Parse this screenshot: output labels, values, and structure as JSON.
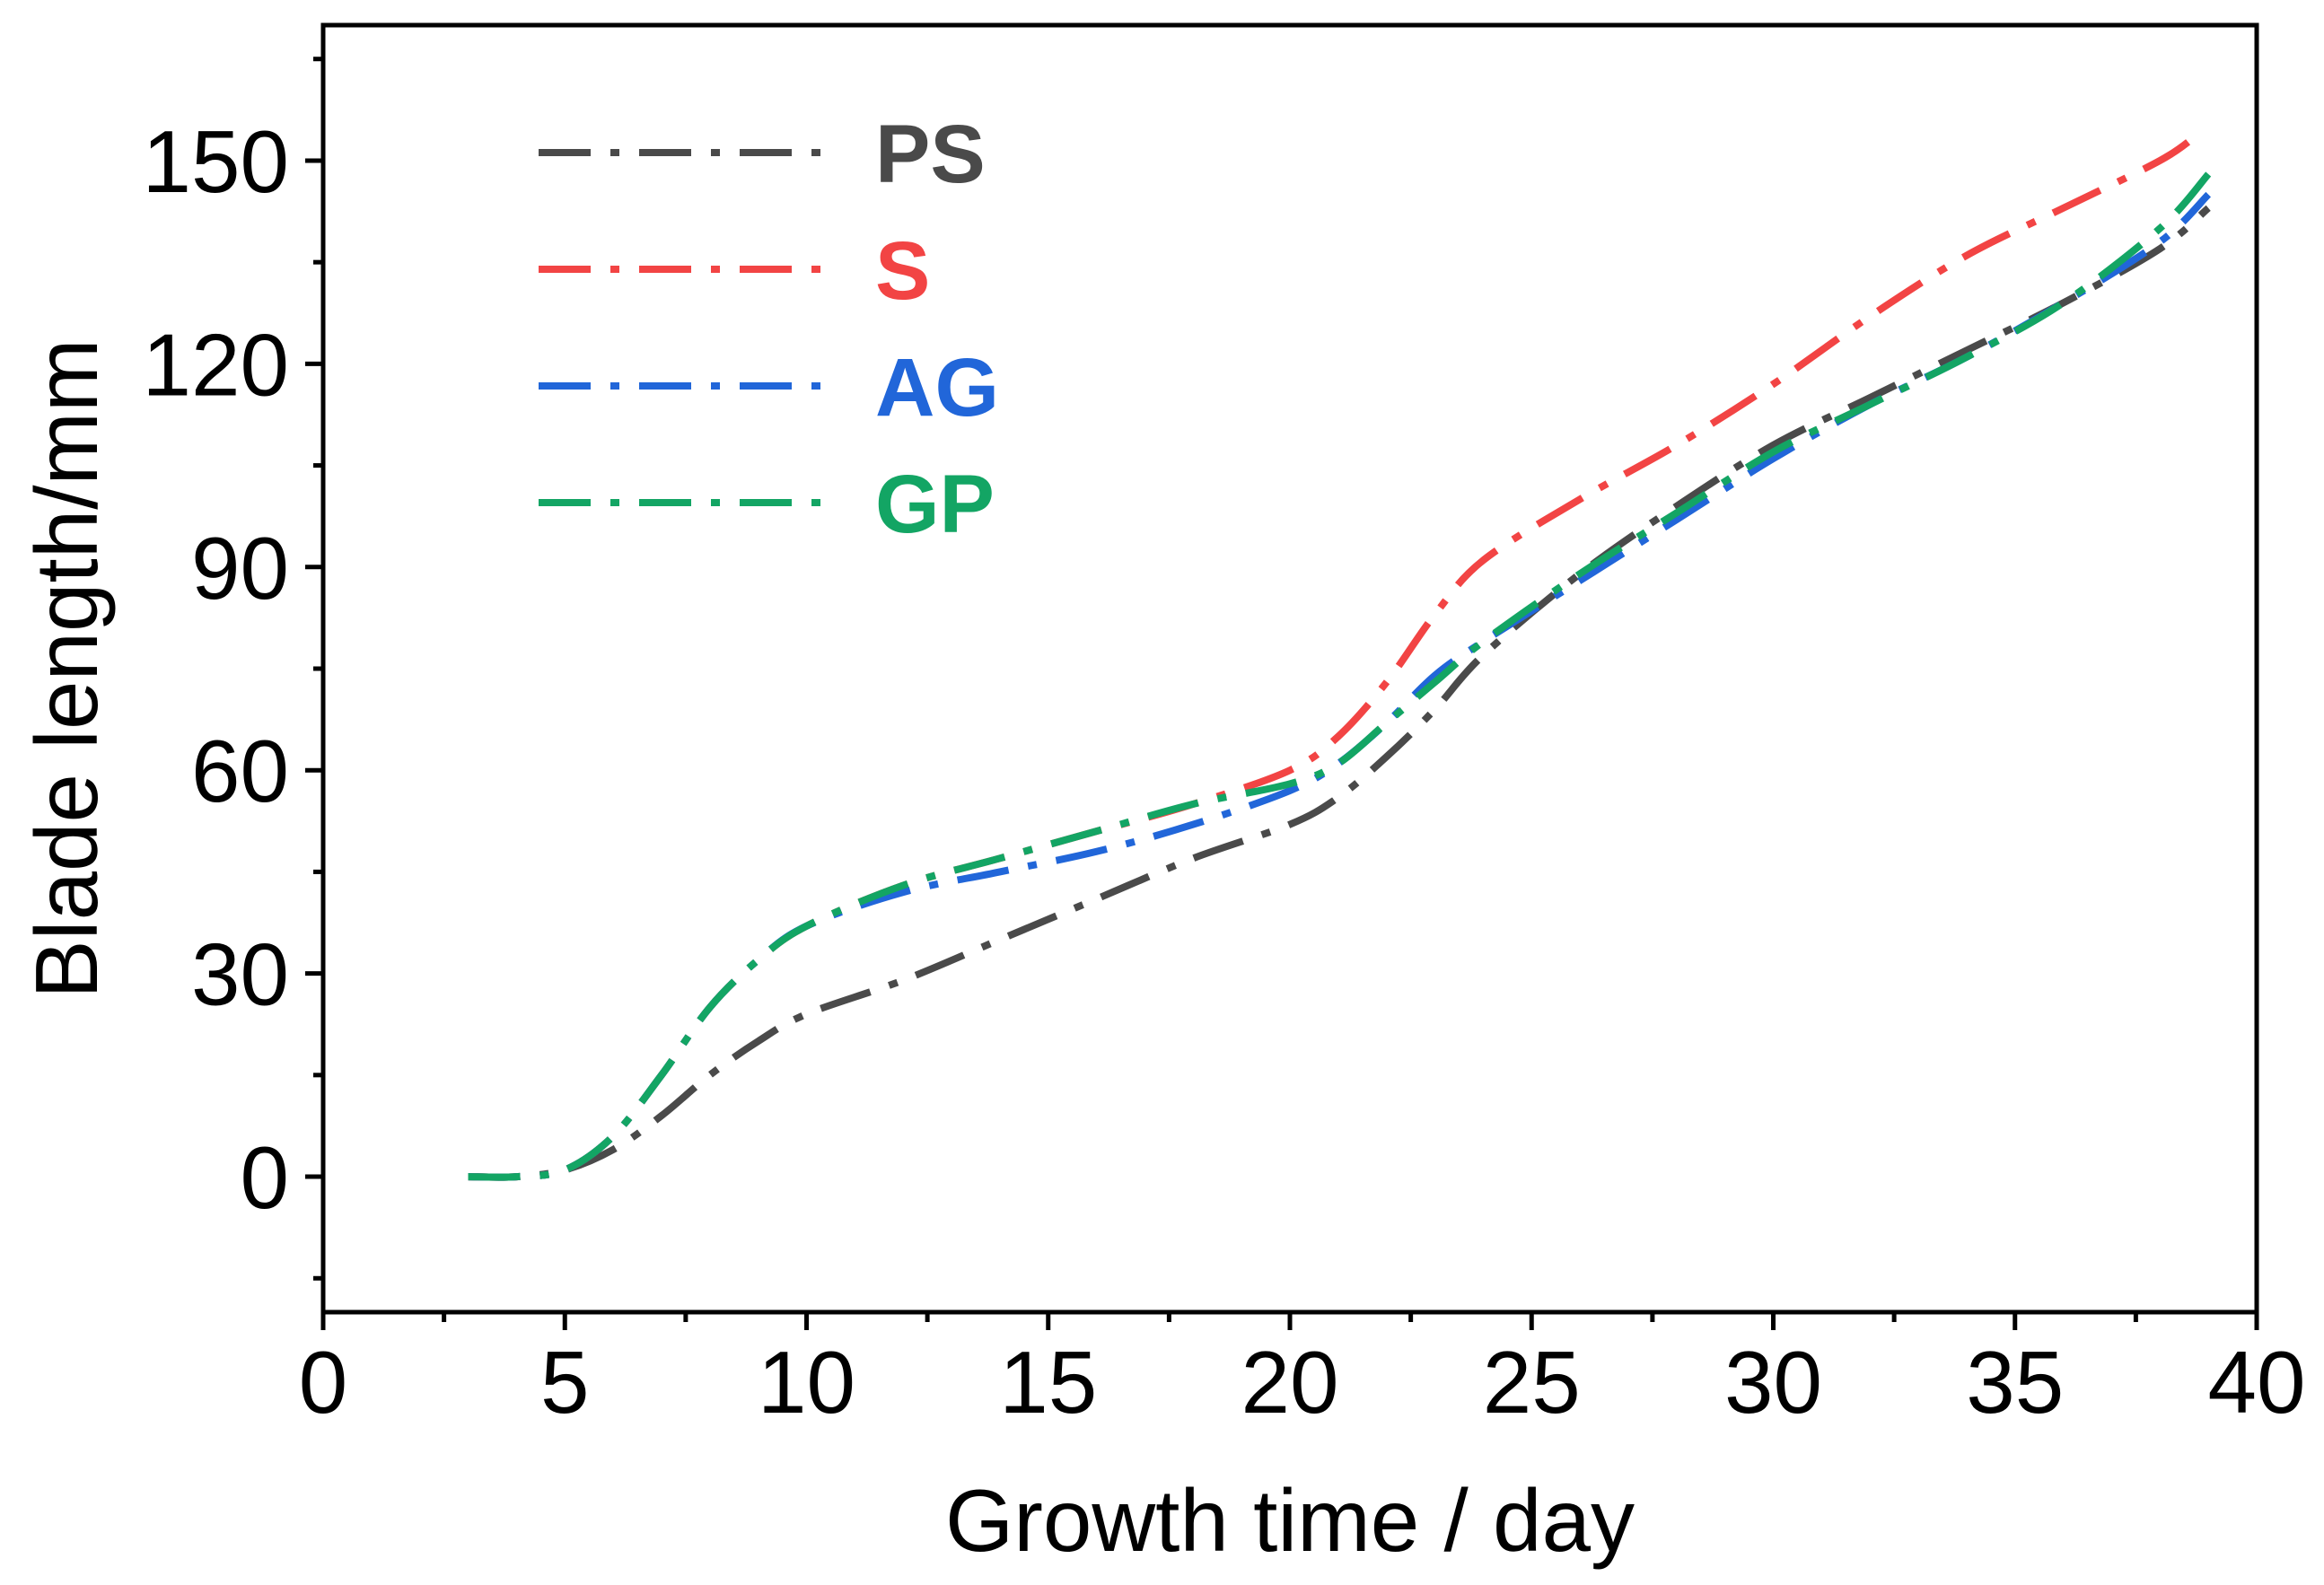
{
  "chart_data": {
    "type": "line",
    "title": "",
    "xlabel": "Growth time / day",
    "ylabel": "Blade length/mm",
    "xlim": [
      0,
      40
    ],
    "ylim": [
      -20,
      170
    ],
    "xticks": [
      0,
      5,
      10,
      15,
      20,
      25,
      30,
      35,
      40
    ],
    "yticks": [
      0,
      30,
      60,
      90,
      120,
      150
    ],
    "grid": false,
    "legend_position": "top-left",
    "series": [
      {
        "name": "PS",
        "color": "#4a4a4a",
        "x": [
          3,
          4,
          5,
          6,
          7,
          8,
          9,
          10,
          12,
          14,
          16,
          18,
          20,
          21,
          22,
          23,
          24,
          26,
          28,
          30,
          32,
          34,
          36,
          38,
          39
        ],
        "y": [
          0,
          0,
          1,
          4,
          9,
          15,
          20,
          24,
          29,
          35,
          41,
          47,
          52,
          56,
          62,
          69,
          77,
          89,
          99,
          108,
          115,
          122,
          129,
          137,
          143
        ]
      },
      {
        "name": "S",
        "color": "#f24444",
        "x": [
          3,
          4,
          5,
          6,
          7,
          8,
          9,
          10,
          12,
          14,
          16,
          18,
          20,
          21,
          22,
          23,
          24,
          26,
          28,
          30,
          32,
          34,
          36,
          38,
          38.8
        ],
        "y": [
          0,
          0,
          1,
          6,
          15,
          25,
          32,
          37,
          43,
          47,
          51,
          55,
          60,
          65,
          73,
          83,
          91,
          100,
          108,
          117,
          127,
          136,
          143,
          150,
          154
        ]
      },
      {
        "name": "AG",
        "color": "#2166d9",
        "x": [
          3,
          4,
          5,
          6,
          7,
          8,
          9,
          10,
          12,
          14,
          16,
          18,
          20,
          21,
          22,
          23,
          24,
          26,
          28,
          30,
          32,
          34,
          36,
          38,
          39
        ],
        "y": [
          0,
          0,
          1,
          6,
          15,
          25,
          32,
          37,
          42,
          45,
          48,
          52,
          57,
          61,
          67,
          74,
          79,
          88,
          97,
          106,
          114,
          121,
          129,
          138,
          145
        ]
      },
      {
        "name": "GP",
        "color": "#13a564",
        "x": [
          3,
          4,
          5,
          6,
          7,
          8,
          9,
          10,
          12,
          14,
          16,
          18,
          20,
          21,
          22,
          23,
          24,
          26,
          28,
          30,
          32,
          34,
          36,
          38,
          39
        ],
        "y": [
          0,
          0,
          1,
          6,
          15,
          25,
          32,
          37,
          43,
          47,
          51,
          55,
          58,
          61,
          67,
          73,
          79,
          89,
          98,
          107,
          114,
          121,
          129,
          140,
          148
        ]
      }
    ]
  }
}
